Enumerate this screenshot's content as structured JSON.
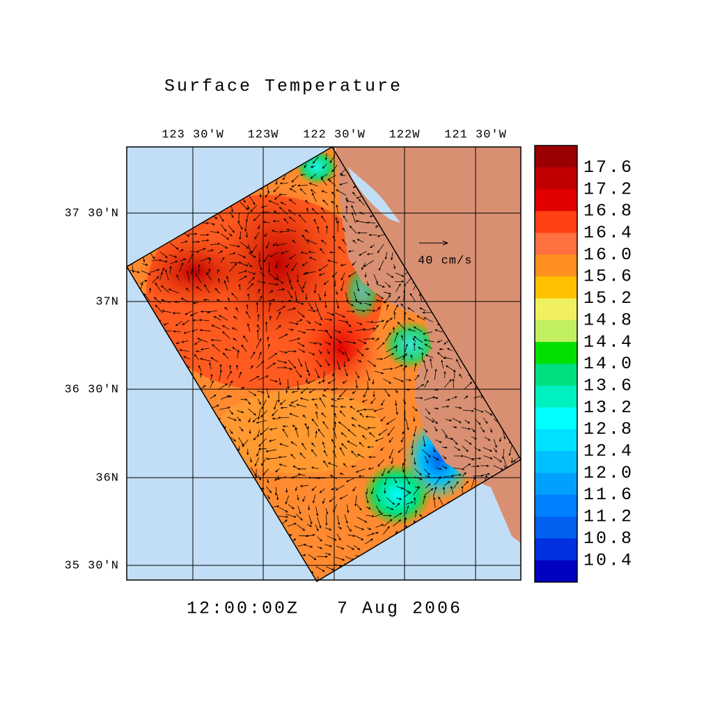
{
  "title": "Surface Temperature",
  "longitude_labels": [
    "123 30'W",
    "123W",
    "122 30'W",
    "122W",
    "121 30'W"
  ],
  "latitude_labels": [
    "37 30'N",
    "37N",
    "36 30'N",
    "36N",
    "35 30'N"
  ],
  "colorbar": {
    "labels": [
      "17.6",
      "17.2",
      "16.8",
      "16.4",
      "16.0",
      "15.6",
      "15.2",
      "14.8",
      "14.4",
      "14.0",
      "13.6",
      "13.2",
      "12.8",
      "12.4",
      "12.0",
      "11.6",
      "11.2",
      "10.8",
      "10.4"
    ],
    "colors": [
      "#9b0000",
      "#c00000",
      "#e00000",
      "#ff4010",
      "#ff7040",
      "#ff9020",
      "#ffc000",
      "#f0f060",
      "#c0f060",
      "#00e000",
      "#00e080",
      "#00f0c0",
      "#00ffff",
      "#00e0ff",
      "#00c0ff",
      "#00a0ff",
      "#0080ff",
      "#0060f0",
      "#0030e0",
      "#0000c0"
    ]
  },
  "vector_scale_label": "40 cm/s",
  "time": "12:00:00Z",
  "date": "7 Aug 2006"
}
